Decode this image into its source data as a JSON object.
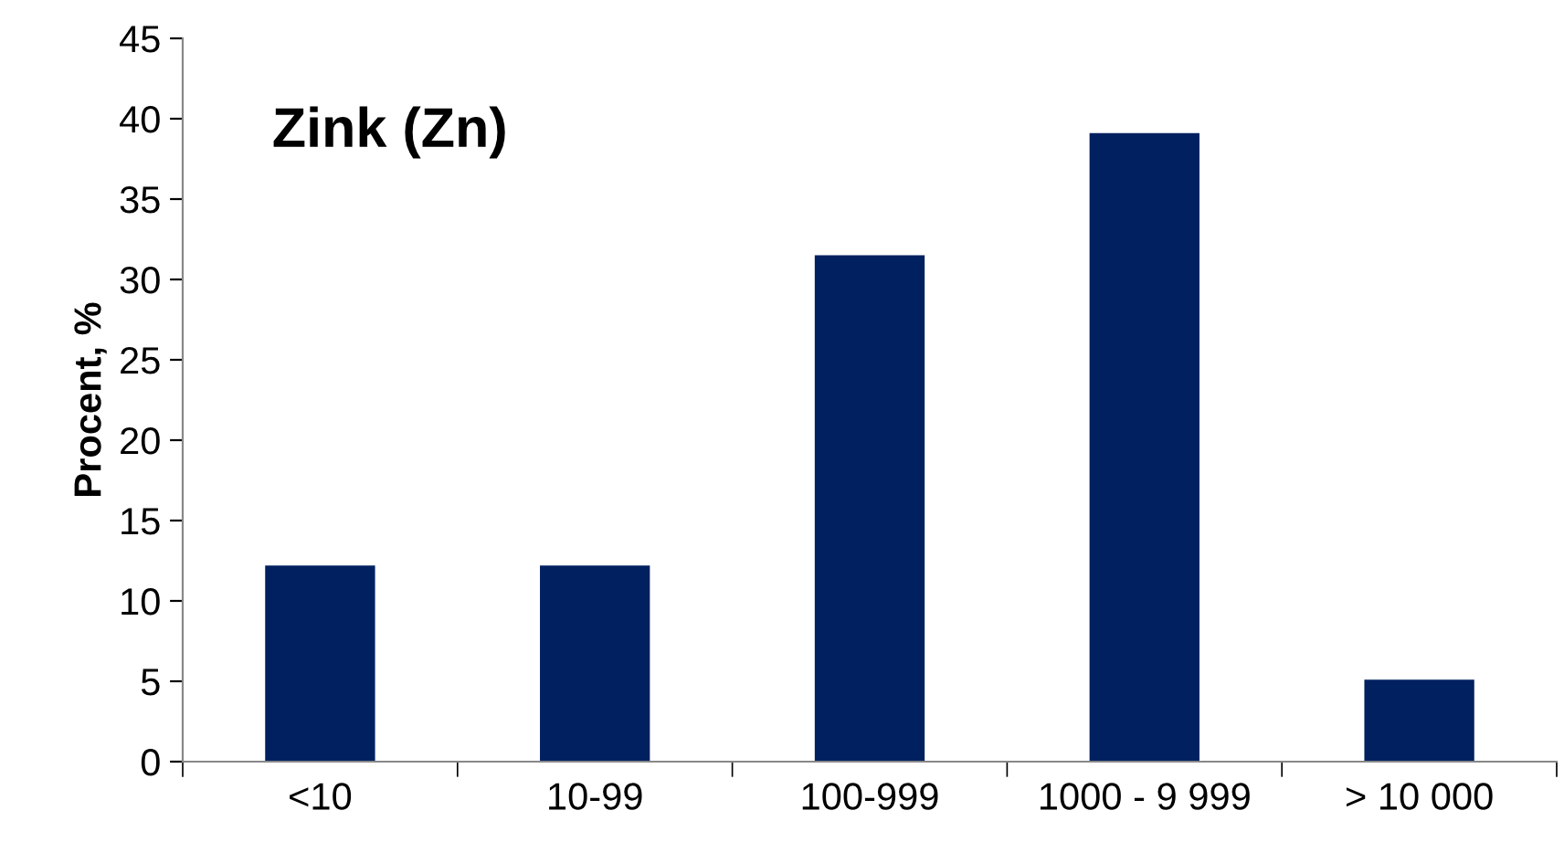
{
  "chart_data": {
    "type": "bar",
    "title": "Zink (Zn)",
    "ylabel": "Procent, %",
    "categories": [
      "<10",
      "10-99",
      "100-999",
      "1000 - 9 999",
      "> 10 000"
    ],
    "values": [
      12.2,
      12.2,
      31.5,
      39.1,
      5.1
    ],
    "color": "#002060",
    "ylim": [
      0,
      45
    ],
    "yticks": [
      0,
      5,
      10,
      15,
      20,
      25,
      30,
      35,
      40,
      45
    ],
    "grid": false
  }
}
